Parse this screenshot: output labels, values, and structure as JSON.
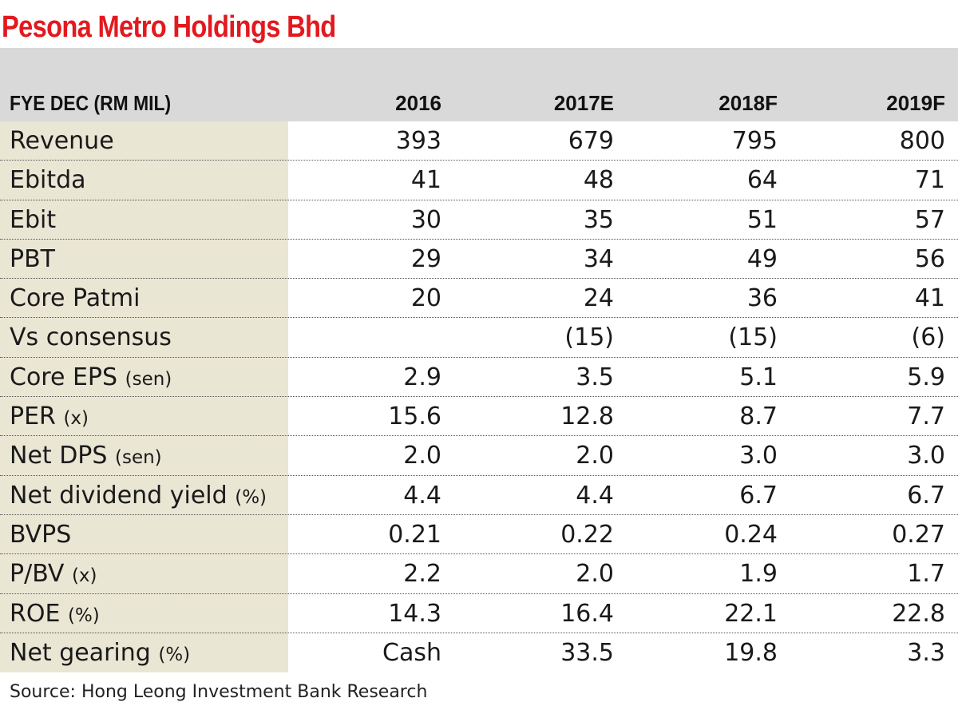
{
  "title": "Pesona Metro Holdings Bhd",
  "header": {
    "label": "FYE DEC (RM MIL)",
    "years": [
      "2016",
      "2017E",
      "2018F",
      "2019F"
    ]
  },
  "rows": [
    {
      "label": "Revenue",
      "unit": "",
      "values": [
        "393",
        "679",
        "795",
        "800"
      ]
    },
    {
      "label": "Ebitda",
      "unit": "",
      "values": [
        "41",
        "48",
        "64",
        "71"
      ]
    },
    {
      "label": "Ebit",
      "unit": "",
      "values": [
        "30",
        "35",
        "51",
        "57"
      ]
    },
    {
      "label": "PBT",
      "unit": "",
      "values": [
        "29",
        "34",
        "49",
        "56"
      ]
    },
    {
      "label": "Core Patmi",
      "unit": "",
      "values": [
        "20",
        "24",
        "36",
        "41"
      ]
    },
    {
      "label": "Vs consensus",
      "unit": "",
      "values": [
        "",
        "(15)",
        "(15)",
        "(6)"
      ]
    },
    {
      "label": "Core EPS",
      "unit": "(sen)",
      "values": [
        "2.9",
        "3.5",
        "5.1",
        "5.9"
      ]
    },
    {
      "label": "PER",
      "unit": "(x)",
      "values": [
        "15.6",
        "12.8",
        "8.7",
        "7.7"
      ]
    },
    {
      "label": "Net DPS",
      "unit": "(sen)",
      "values": [
        "2.0",
        "2.0",
        "3.0",
        "3.0"
      ]
    },
    {
      "label": "Net dividend yield",
      "unit": "(%)",
      "values": [
        "4.4",
        "4.4",
        "6.7",
        "6.7"
      ]
    },
    {
      "label": "BVPS",
      "unit": "",
      "values": [
        "0.21",
        "0.22",
        "0.24",
        "0.27"
      ]
    },
    {
      "label": "P/BV",
      "unit": "(x)",
      "values": [
        "2.2",
        "2.0",
        "1.9",
        "1.7"
      ]
    },
    {
      "label": "ROE",
      "unit": "(%)",
      "values": [
        "14.3",
        "16.4",
        "22.1",
        "22.8"
      ]
    },
    {
      "label": "Net gearing",
      "unit": "(%)",
      "values": [
        "Cash",
        "33.5",
        "19.8",
        "3.3"
      ]
    }
  ],
  "source": "Source: Hong Leong Investment Bank Research",
  "colors": {
    "title": "#e2191f",
    "header_bg": "#d9d9d9",
    "label_bg": "#eae6d4"
  }
}
